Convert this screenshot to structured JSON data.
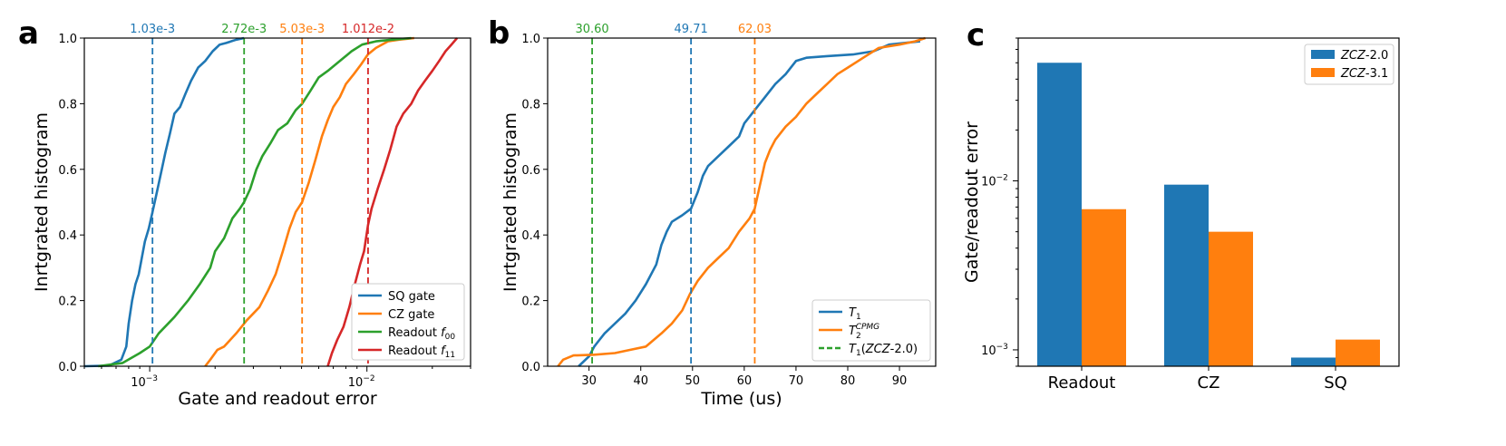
{
  "colors": {
    "blue": "#1f77b4",
    "orange": "#ff7f0e",
    "green": "#2ca02c",
    "red": "#d62728"
  },
  "chart_data": [
    {
      "panel": "a",
      "type": "line",
      "xscale": "log",
      "xlim": [
        0.0005,
        0.03
      ],
      "ylim": [
        0,
        1
      ],
      "xlabel": "Gate and readout error",
      "ylabel": "Inrtgrated histogram",
      "xticks": [
        {
          "v": 0.001,
          "label": "10",
          "exp": "−3"
        },
        {
          "v": 0.01,
          "label": "10",
          "exp": "−2"
        }
      ],
      "yticks": [
        "0.0",
        "0.2",
        "0.4",
        "0.6",
        "0.8",
        "1.0"
      ],
      "legend_position": "lower-right",
      "series": [
        {
          "name": "SQ gate",
          "color_key": "blue",
          "points": [
            [
              0.0005,
              0
            ],
            [
              0.00065,
              0.002
            ],
            [
              0.00074,
              0.02
            ],
            [
              0.00078,
              0.06
            ],
            [
              0.0008,
              0.13
            ],
            [
              0.00083,
              0.2
            ],
            [
              0.00086,
              0.25
            ],
            [
              0.00089,
              0.28
            ],
            [
              0.00092,
              0.33
            ],
            [
              0.00095,
              0.38
            ],
            [
              0.00099,
              0.42
            ],
            [
              0.00103,
              0.47
            ],
            [
              0.00107,
              0.52
            ],
            [
              0.00112,
              0.58
            ],
            [
              0.00118,
              0.65
            ],
            [
              0.00124,
              0.71
            ],
            [
              0.0013,
              0.77
            ],
            [
              0.00138,
              0.79
            ],
            [
              0.00146,
              0.83
            ],
            [
              0.00155,
              0.87
            ],
            [
              0.00167,
              0.91
            ],
            [
              0.0018,
              0.93
            ],
            [
              0.00195,
              0.96
            ],
            [
              0.0021,
              0.98
            ],
            [
              0.00225,
              0.985
            ],
            [
              0.0025,
              0.995
            ],
            [
              0.00272,
              1.0
            ]
          ]
        },
        {
          "name": "CZ gate",
          "color_key": "orange",
          "points": [
            [
              0.0018,
              0
            ],
            [
              0.0019,
              0.02
            ],
            [
              0.00205,
              0.05
            ],
            [
              0.0022,
              0.06
            ],
            [
              0.0025,
              0.1
            ],
            [
              0.0028,
              0.14
            ],
            [
              0.0032,
              0.18
            ],
            [
              0.0035,
              0.23
            ],
            [
              0.0038,
              0.28
            ],
            [
              0.0041,
              0.35
            ],
            [
              0.0044,
              0.42
            ],
            [
              0.0047,
              0.47
            ],
            [
              0.00503,
              0.5
            ],
            [
              0.0054,
              0.56
            ],
            [
              0.0058,
              0.63
            ],
            [
              0.0062,
              0.7
            ],
            [
              0.0066,
              0.75
            ],
            [
              0.007,
              0.79
            ],
            [
              0.0075,
              0.82
            ],
            [
              0.008,
              0.86
            ],
            [
              0.0087,
              0.89
            ],
            [
              0.0094,
              0.92
            ],
            [
              0.0101,
              0.95
            ],
            [
              0.011,
              0.97
            ],
            [
              0.0125,
              0.99
            ],
            [
              0.014,
              0.995
            ],
            [
              0.0165,
              1.0
            ]
          ]
        },
        {
          "name": "Readout f00",
          "sub": "00",
          "color_key": "green",
          "points": [
            [
              0.00058,
              0
            ],
            [
              0.00075,
              0.01
            ],
            [
              0.0009,
              0.04
            ],
            [
              0.001,
              0.06
            ],
            [
              0.0011,
              0.1
            ],
            [
              0.0013,
              0.15
            ],
            [
              0.0015,
              0.2
            ],
            [
              0.0017,
              0.25
            ],
            [
              0.0019,
              0.3
            ],
            [
              0.002,
              0.35
            ],
            [
              0.0022,
              0.39
            ],
            [
              0.0024,
              0.45
            ],
            [
              0.0026,
              0.48
            ],
            [
              0.00272,
              0.5
            ],
            [
              0.0029,
              0.54
            ],
            [
              0.0031,
              0.6
            ],
            [
              0.0033,
              0.64
            ],
            [
              0.0036,
              0.68
            ],
            [
              0.0039,
              0.72
            ],
            [
              0.0043,
              0.74
            ],
            [
              0.0047,
              0.78
            ],
            [
              0.00503,
              0.8
            ],
            [
              0.0055,
              0.84
            ],
            [
              0.006,
              0.88
            ],
            [
              0.0066,
              0.9
            ],
            [
              0.0075,
              0.93
            ],
            [
              0.0085,
              0.96
            ],
            [
              0.0095,
              0.98
            ],
            [
              0.011,
              0.99
            ],
            [
              0.013,
              0.995
            ],
            [
              0.016,
              1.0
            ]
          ]
        },
        {
          "name": "Readout f11",
          "sub": "11",
          "color_key": "red",
          "points": [
            [
              0.0066,
              0
            ],
            [
              0.0069,
              0.04
            ],
            [
              0.0073,
              0.08
            ],
            [
              0.0078,
              0.12
            ],
            [
              0.0083,
              0.18
            ],
            [
              0.0088,
              0.25
            ],
            [
              0.0093,
              0.31
            ],
            [
              0.0097,
              0.35
            ],
            [
              0.01012,
              0.43
            ],
            [
              0.0105,
              0.48
            ],
            [
              0.0112,
              0.54
            ],
            [
              0.012,
              0.6
            ],
            [
              0.0128,
              0.66
            ],
            [
              0.0137,
              0.73
            ],
            [
              0.0147,
              0.77
            ],
            [
              0.016,
              0.8
            ],
            [
              0.0172,
              0.84
            ],
            [
              0.0185,
              0.87
            ],
            [
              0.02,
              0.9
            ],
            [
              0.0215,
              0.93
            ],
            [
              0.023,
              0.96
            ],
            [
              0.0245,
              0.98
            ],
            [
              0.026,
              1.0
            ]
          ]
        }
      ],
      "vlines": [
        {
          "x": 0.00103,
          "label": "1.03e-3",
          "color_key": "blue"
        },
        {
          "x": 0.00272,
          "label": "2.72e-3",
          "color_key": "green"
        },
        {
          "x": 0.00503,
          "label": "5.03e-3",
          "color_key": "orange"
        },
        {
          "x": 0.01012,
          "label": "1.012e-2",
          "color_key": "red"
        }
      ]
    },
    {
      "panel": "b",
      "type": "line",
      "xscale": "linear",
      "xlim": [
        22,
        97
      ],
      "ylim": [
        0,
        1
      ],
      "xlabel": "Time (us)",
      "ylabel": "Inrtgrated histogram",
      "xticks": [
        "30",
        "40",
        "50",
        "60",
        "70",
        "80",
        "90"
      ],
      "yticks": [
        "0.0",
        "0.2",
        "0.4",
        "0.6",
        "0.8",
        "1.0"
      ],
      "legend_position": "lower-right",
      "series": [
        {
          "name": "T1",
          "color_key": "blue",
          "points": [
            [
              28,
              0
            ],
            [
              30,
              0.03
            ],
            [
              31,
              0.06
            ],
            [
              32,
              0.08
            ],
            [
              33,
              0.1
            ],
            [
              35,
              0.13
            ],
            [
              37,
              0.16
            ],
            [
              39,
              0.2
            ],
            [
              41,
              0.25
            ],
            [
              43,
              0.31
            ],
            [
              44,
              0.37
            ],
            [
              45,
              0.41
            ],
            [
              46,
              0.44
            ],
            [
              48,
              0.46
            ],
            [
              49.71,
              0.48
            ],
            [
              51,
              0.53
            ],
            [
              52,
              0.58
            ],
            [
              53,
              0.61
            ],
            [
              55,
              0.64
            ],
            [
              57,
              0.67
            ],
            [
              59,
              0.7
            ],
            [
              60,
              0.74
            ],
            [
              62,
              0.78
            ],
            [
              64,
              0.82
            ],
            [
              66,
              0.86
            ],
            [
              68,
              0.89
            ],
            [
              70,
              0.93
            ],
            [
              72,
              0.94
            ],
            [
              76,
              0.945
            ],
            [
              81,
              0.95
            ],
            [
              85,
              0.96
            ],
            [
              88,
              0.98
            ],
            [
              94,
              0.99
            ]
          ]
        },
        {
          "name": "T2 CPMG",
          "sup": "CPMG",
          "sub": "2",
          "color_key": "orange",
          "points": [
            [
              24,
              0
            ],
            [
              25,
              0.02
            ],
            [
              27,
              0.033
            ],
            [
              31,
              0.035
            ],
            [
              35,
              0.04
            ],
            [
              38,
              0.05
            ],
            [
              41,
              0.06
            ],
            [
              44,
              0.1
            ],
            [
              46,
              0.13
            ],
            [
              48,
              0.17
            ],
            [
              49.5,
              0.22
            ],
            [
              51,
              0.26
            ],
            [
              53,
              0.3
            ],
            [
              55,
              0.33
            ],
            [
              57,
              0.36
            ],
            [
              59,
              0.41
            ],
            [
              61,
              0.45
            ],
            [
              62.03,
              0.48
            ],
            [
              63,
              0.55
            ],
            [
              64,
              0.62
            ],
            [
              65,
              0.66
            ],
            [
              66,
              0.69
            ],
            [
              68,
              0.73
            ],
            [
              70,
              0.76
            ],
            [
              72,
              0.8
            ],
            [
              74,
              0.83
            ],
            [
              76,
              0.86
            ],
            [
              78,
              0.89
            ],
            [
              80,
              0.91
            ],
            [
              83,
              0.94
            ],
            [
              86,
              0.97
            ],
            [
              90,
              0.98
            ],
            [
              93,
              0.99
            ],
            [
              95,
              1.0
            ]
          ]
        }
      ],
      "vlines": [
        {
          "x": 30.6,
          "label": "30.60",
          "color_key": "green"
        },
        {
          "x": 49.71,
          "label": "49.71",
          "color_key": "blue"
        },
        {
          "x": 62.03,
          "label": "62.03",
          "color_key": "orange"
        }
      ],
      "legend_extra": {
        "name": "T1(ZCZ-2.0)",
        "color_key": "green",
        "dashed": true
      }
    },
    {
      "panel": "c",
      "type": "bar",
      "yscale": "log",
      "ylim": [
        0.0008,
        0.07
      ],
      "ylabel": "Gate/readout error",
      "categories": [
        "Readout",
        "CZ",
        "SQ"
      ],
      "yticks": [
        {
          "v": 0.001,
          "label": "10",
          "exp": "−3"
        },
        {
          "v": 0.01,
          "label": "10",
          "exp": "−2"
        }
      ],
      "legend_position": "top-right",
      "series": [
        {
          "name": "ZCZ-2.0",
          "italic": "ZCZ",
          "suffix": "-2.0",
          "color_key": "blue",
          "values": [
            0.05,
            0.0095,
            0.0009
          ]
        },
        {
          "name": "ZCZ-3.1",
          "italic": "ZCZ",
          "suffix": "-3.1",
          "color_key": "orange",
          "values": [
            0.0068,
            0.005,
            0.00115
          ]
        }
      ]
    }
  ]
}
